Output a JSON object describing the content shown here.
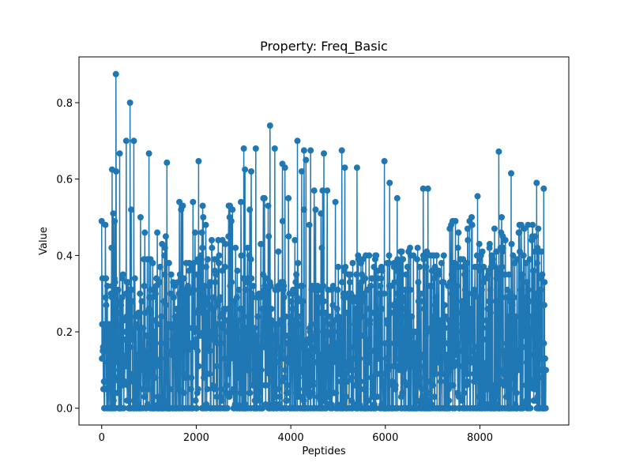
{
  "chart_data": {
    "type": "line",
    "style": "stem-dense-markers",
    "title": "Property: Freq_Basic",
    "xlabel": "Peptides",
    "ylabel": "Value",
    "xlim": [
      -480,
      9880
    ],
    "ylim": [
      -0.044,
      0.92
    ],
    "xticks": [
      0,
      2000,
      4000,
      6000,
      8000
    ],
    "xtick_labels": [
      "0",
      "2000",
      "4000",
      "6000",
      "8000"
    ],
    "yticks": [
      0.0,
      0.2,
      0.4,
      0.6,
      0.8
    ],
    "ytick_labels": [
      "0.0",
      "0.2",
      "0.4",
      "0.6",
      "0.8"
    ],
    "grid": false,
    "series_color": "#1f77b4",
    "series": [
      {
        "n_points": 9400,
        "x_range": [
          0,
          9400
        ],
        "y_range": [
          0.0,
          0.875
        ],
        "notable_peaks": [
          {
            "x": 300,
            "y": 0.875
          },
          {
            "x": 600,
            "y": 0.8
          },
          {
            "x": 3560,
            "y": 0.74
          },
          {
            "x": 4140,
            "y": 0.7
          },
          {
            "x": 520,
            "y": 0.7
          },
          {
            "x": 680,
            "y": 0.7
          },
          {
            "x": 3260,
            "y": 0.68
          },
          {
            "x": 3660,
            "y": 0.68
          },
          {
            "x": 4280,
            "y": 0.675
          },
          {
            "x": 4420,
            "y": 0.675
          },
          {
            "x": 5080,
            "y": 0.675
          },
          {
            "x": 8400,
            "y": 0.672
          },
          {
            "x": 1000,
            "y": 0.667
          },
          {
            "x": 380,
            "y": 0.667
          },
          {
            "x": 4700,
            "y": 0.667
          },
          {
            "x": 5980,
            "y": 0.647
          },
          {
            "x": 2050,
            "y": 0.647
          },
          {
            "x": 1380,
            "y": 0.643
          },
          {
            "x": 220,
            "y": 0.625
          },
          {
            "x": 3030,
            "y": 0.625
          },
          {
            "x": 5400,
            "y": 0.63
          },
          {
            "x": 8660,
            "y": 0.615
          },
          {
            "x": 6090,
            "y": 0.59
          },
          {
            "x": 9200,
            "y": 0.59
          },
          {
            "x": 6800,
            "y": 0.575
          },
          {
            "x": 6900,
            "y": 0.575
          },
          {
            "x": 6250,
            "y": 0.55
          },
          {
            "x": 3950,
            "y": 0.55
          },
          {
            "x": 7950,
            "y": 0.555
          },
          {
            "x": 9350,
            "y": 0.575
          }
        ],
        "regional_envelope": [
          {
            "x_from": 0,
            "x_to": 1000,
            "upper": 0.62,
            "mid": 0.35
          },
          {
            "x_from": 1000,
            "x_to": 3000,
            "upper": 0.55,
            "mid": 0.4
          },
          {
            "x_from": 3000,
            "x_to": 3800,
            "upper": 0.68,
            "mid": 0.35
          },
          {
            "x_from": 3800,
            "x_to": 5200,
            "upper": 0.66,
            "mid": 0.33
          },
          {
            "x_from": 5200,
            "x_to": 7300,
            "upper": 0.42,
            "mid": 0.38
          },
          {
            "x_from": 7300,
            "x_to": 9400,
            "upper": 0.5,
            "mid": 0.4
          }
        ]
      }
    ]
  }
}
